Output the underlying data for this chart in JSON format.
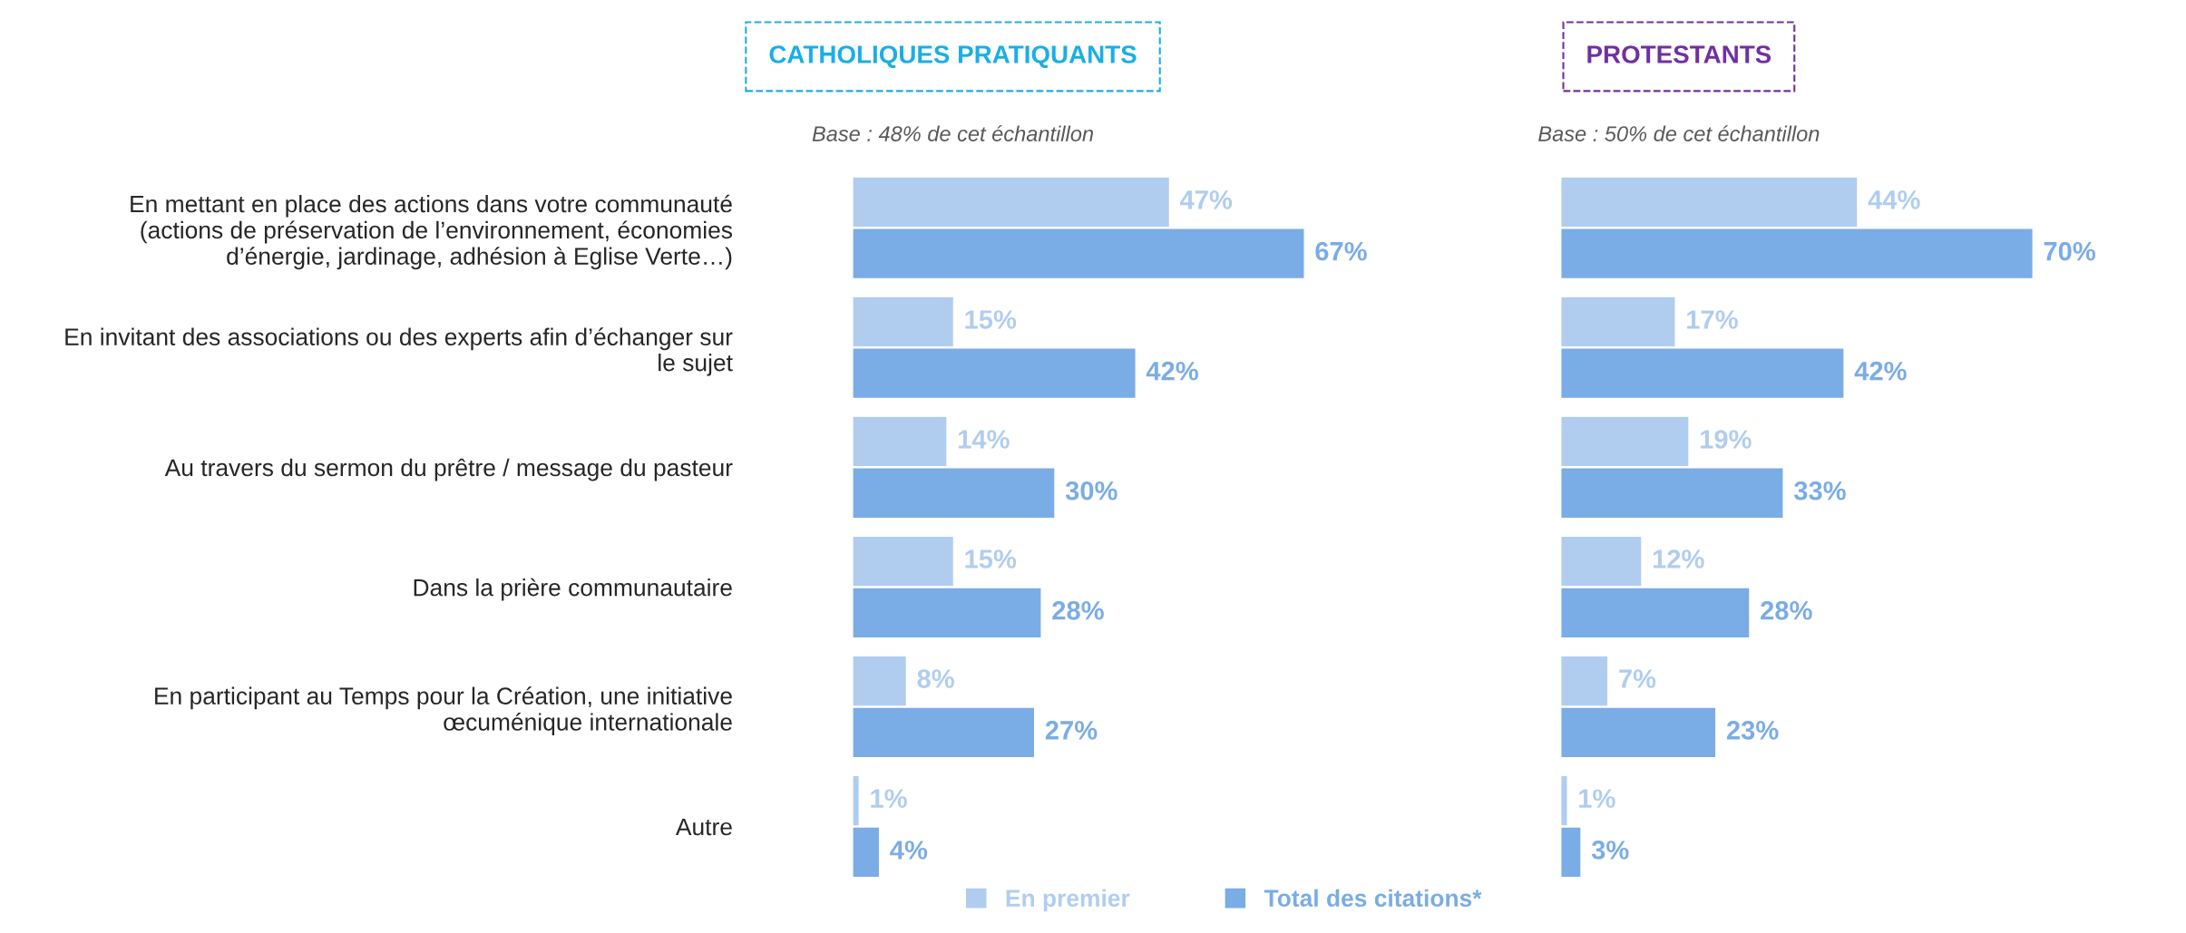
{
  "chart_data": [
    {
      "type": "bar",
      "orientation": "horizontal",
      "title": "CATHOLIQUES PRATIQUANTS",
      "subtitle": "Base : 48% de cet échantillon",
      "categories": [
        "En mettant en place des actions dans votre communauté\n(actions de préservation de l’environnement, économies\nd’énergie, jardinage, adhésion à Eglise Verte…)",
        "En invitant des associations ou des experts afin d’échanger sur\nle sujet",
        "Au travers du sermon du prêtre / message du pasteur",
        "Dans la prière communautaire",
        "En participant au Temps pour la Création, une initiative\nœcuménique internationale",
        "Autre"
      ],
      "series": [
        {
          "name": "En premier",
          "color": "#b0cdf0",
          "values": [
            47,
            15,
            14,
            15,
            8,
            1
          ],
          "value_labels": [
            "47%",
            "15%",
            "14%",
            "15%",
            "8%",
            "1%"
          ]
        },
        {
          "name": "Total des citations*",
          "color": "#7aace6",
          "values": [
            67,
            42,
            30,
            28,
            27,
            4
          ],
          "value_labels": [
            "67%",
            "42%",
            "30%",
            "28%",
            "27%",
            "4%"
          ]
        }
      ],
      "tick_labels": "y",
      "legend": "bottom"
    },
    {
      "type": "bar",
      "orientation": "horizontal",
      "title": "PROTESTANTS",
      "subtitle": "Base : 50% de cet échantillon",
      "series": [
        {
          "color": "#b0cdf0",
          "values": [
            44,
            17,
            19,
            12,
            7,
            1
          ],
          "value_labels": [
            "44%",
            "17%",
            "19%",
            "12%",
            "7%",
            "1%"
          ]
        },
        {
          "color": "#7aace6",
          "values": [
            70,
            42,
            33,
            28,
            23,
            3
          ],
          "value_labels": [
            "70%",
            "42%",
            "33%",
            "28%",
            "23%",
            "3%"
          ]
        }
      ],
      "tick_labels": false
    }
  ]
}
